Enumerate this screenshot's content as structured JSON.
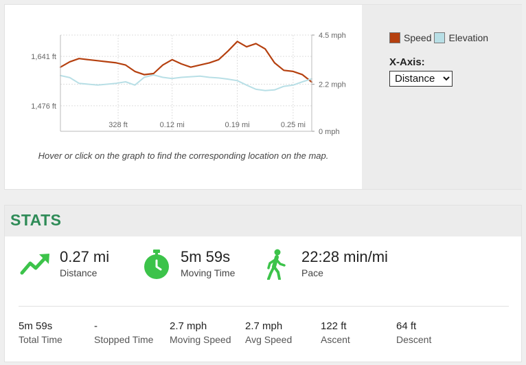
{
  "chart": {
    "caption": "Hover or click on the graph to find the corresponding location on the map.",
    "legend": {
      "speed_label": "Speed",
      "elevation_label": "Elevation"
    },
    "xaxis_label": "X-Axis:",
    "xaxis_selected": "Distance",
    "colors": {
      "speed": "#b5400f",
      "elevation": "#b8dfe6"
    }
  },
  "chart_data": {
    "type": "line",
    "title": "",
    "x_tick_labels": [
      "328 ft",
      "0.12 mi",
      "0.19 mi",
      "0.25 mi"
    ],
    "x_ticks_mi": [
      0.062,
      0.12,
      0.19,
      0.25
    ],
    "xlim_mi": [
      0,
      0.27
    ],
    "left_axis": {
      "tick_labels": [
        "1,641 ft",
        "1,476 ft"
      ],
      "ticks_ft": [
        1641,
        1476
      ],
      "range_ft": [
        1391,
        1712
      ]
    },
    "right_axis": {
      "tick_labels": [
        "4.5 mph",
        "2.2 mph",
        "0 mph"
      ],
      "ticks_mph": [
        4.5,
        2.2,
        0
      ],
      "range_mph": [
        0,
        4.5
      ]
    },
    "grid": true,
    "legend_position": "right",
    "series": [
      {
        "name": "Speed",
        "axis": "right",
        "color": "#b5400f",
        "x_mi": [
          0.0,
          0.01,
          0.02,
          0.03,
          0.04,
          0.05,
          0.06,
          0.07,
          0.08,
          0.09,
          0.1,
          0.11,
          0.12,
          0.13,
          0.14,
          0.15,
          0.16,
          0.17,
          0.18,
          0.19,
          0.2,
          0.21,
          0.22,
          0.23,
          0.24,
          0.25,
          0.26,
          0.27
        ],
        "values": [
          3.0,
          3.25,
          3.4,
          3.35,
          3.3,
          3.25,
          3.2,
          3.1,
          2.8,
          2.65,
          2.7,
          3.1,
          3.35,
          3.15,
          3.0,
          3.1,
          3.2,
          3.35,
          3.75,
          4.2,
          3.95,
          4.1,
          3.85,
          3.2,
          2.85,
          2.8,
          2.65,
          2.3
        ]
      },
      {
        "name": "Elevation",
        "axis": "left",
        "color": "#b8dfe6",
        "x_mi": [
          0.0,
          0.01,
          0.02,
          0.03,
          0.04,
          0.05,
          0.06,
          0.07,
          0.08,
          0.09,
          0.1,
          0.11,
          0.12,
          0.13,
          0.14,
          0.15,
          0.16,
          0.17,
          0.18,
          0.19,
          0.2,
          0.21,
          0.22,
          0.23,
          0.24,
          0.25,
          0.26,
          0.27
        ],
        "values": [
          1577,
          1570,
          1551,
          1548,
          1545,
          1548,
          1551,
          1556,
          1545,
          1571,
          1579,
          1571,
          1567,
          1571,
          1573,
          1575,
          1571,
          1569,
          1565,
          1560,
          1545,
          1531,
          1527,
          1529,
          1541,
          1545,
          1556,
          1566
        ]
      }
    ]
  },
  "stats": {
    "title": "STATS",
    "highlights": [
      {
        "icon": "trending-up-icon",
        "value": "0.27 mi",
        "label": "Distance"
      },
      {
        "icon": "stopwatch-icon",
        "value": "5m 59s",
        "label": "Moving Time"
      },
      {
        "icon": "walking-person-icon",
        "value": "22:28 min/mi",
        "label": "Pace"
      }
    ],
    "details": [
      {
        "value": "5m 59s",
        "label": "Total Time"
      },
      {
        "value": "-",
        "label": "Stopped Time"
      },
      {
        "value": "2.7 mph",
        "label": "Moving Speed"
      },
      {
        "value": "2.7 mph",
        "label": "Avg Speed"
      },
      {
        "value": "122 ft",
        "label": "Ascent"
      },
      {
        "value": "64 ft",
        "label": "Descent"
      }
    ],
    "accent_color": "#2e8b57"
  }
}
